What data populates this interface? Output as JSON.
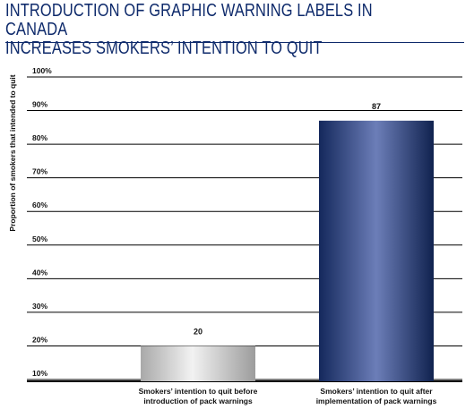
{
  "title_lines": [
    "INTRODUCTION OF GRAPHIC WARNING LABELS IN CANADA",
    "INCREASES SMOKERS’ INTENTION TO QUIT"
  ],
  "colors": {
    "title": "#0e2a6b",
    "bar_gray": "#c8c8c8",
    "bar_navy": "#1c3470",
    "grid": "#000000"
  },
  "chart_data": {
    "type": "bar",
    "title": "INTRODUCTION OF GRAPHIC WARNING LABELS IN CANADA INCREASES SMOKERS’ INTENTION TO QUIT",
    "xlabel": "",
    "ylabel": "Proportion of smokers that intended to quit",
    "categories": [
      [
        "Smokers’ intention to quit before",
        "introduction of pack warnings"
      ],
      [
        "Smokers’ intention to quit after",
        "implementation of pack warnings"
      ]
    ],
    "values": [
      20,
      87
    ],
    "data_labels": [
      "20",
      "87"
    ],
    "bar_colors": [
      "gray",
      "navy"
    ],
    "y_ticks": [
      "10%",
      "20%",
      "30%",
      "40%",
      "50%",
      "60%",
      "70%",
      "80%",
      "90%",
      "100%"
    ],
    "ylim": [
      10,
      100
    ],
    "grid": true,
    "legend": "none"
  }
}
